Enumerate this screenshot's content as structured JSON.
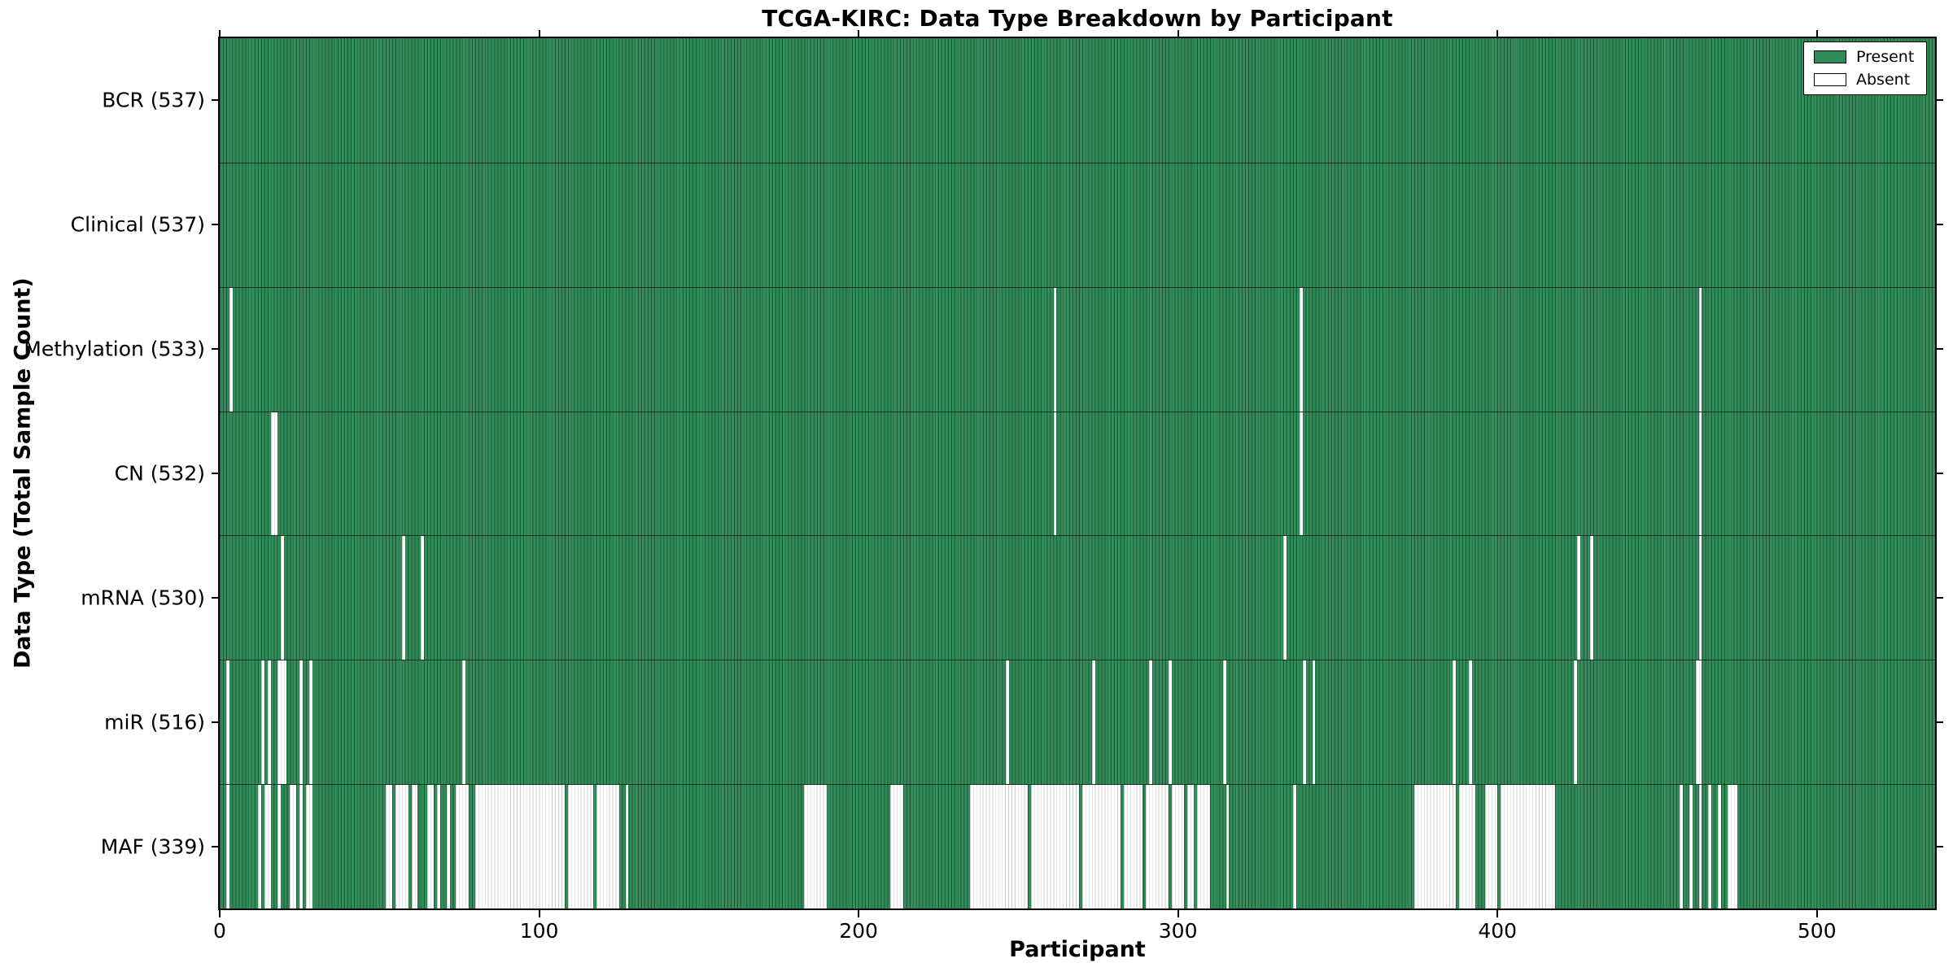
{
  "title": "TCGA-KIRC: Data Type Breakdown by Participant",
  "xlabel": "Participant",
  "ylabel": "Data Type (Total Sample Count)",
  "legend": {
    "present_label": "Present",
    "absent_label": "Absent"
  },
  "colors": {
    "present": "#2e8b57",
    "absent": "#ffffff",
    "edge": "#000000"
  },
  "x_ticks": [
    0,
    100,
    200,
    300,
    400,
    500
  ],
  "n_participants": 537,
  "chart_data": {
    "type": "heatmap",
    "title": "TCGA-KIRC: Data Type Breakdown by Participant",
    "xlabel": "Participant",
    "ylabel": "Data Type (Total Sample Count)",
    "xlim": [
      0,
      537
    ],
    "x_ticks": [
      0,
      100,
      200,
      300,
      400,
      500
    ],
    "legend_position": "upper right",
    "legend_entries": [
      "Present",
      "Absent"
    ],
    "grid": false,
    "rows": [
      {
        "name": "BCR",
        "label": "BCR (537)",
        "total": 537,
        "absent_ranges": []
      },
      {
        "name": "Clinical",
        "label": "Clinical (537)",
        "total": 537,
        "absent_ranges": []
      },
      {
        "name": "Methylation",
        "label": "Methylation (533)",
        "total": 533,
        "absent_ranges": [
          [
            3,
            3
          ],
          [
            261,
            261
          ],
          [
            338,
            338
          ],
          [
            463,
            463
          ]
        ]
      },
      {
        "name": "CN",
        "label": "CN (532)",
        "total": 532,
        "absent_ranges": [
          [
            16,
            17
          ],
          [
            261,
            261
          ],
          [
            338,
            338
          ],
          [
            463,
            463
          ]
        ]
      },
      {
        "name": "mRNA",
        "label": "mRNA (530)",
        "total": 530,
        "absent_ranges": [
          [
            19,
            19
          ],
          [
            57,
            57
          ],
          [
            63,
            63
          ],
          [
            333,
            333
          ],
          [
            425,
            425
          ],
          [
            429,
            429
          ],
          [
            463,
            463
          ]
        ]
      },
      {
        "name": "miR",
        "label": "miR (516)",
        "total": 516,
        "absent_ranges": [
          [
            2,
            2
          ],
          [
            13,
            13
          ],
          [
            15,
            15
          ],
          [
            18,
            20
          ],
          [
            25,
            25
          ],
          [
            28,
            28
          ],
          [
            76,
            76
          ],
          [
            246,
            246
          ],
          [
            273,
            273
          ],
          [
            291,
            291
          ],
          [
            297,
            297
          ],
          [
            314,
            314
          ],
          [
            339,
            339
          ],
          [
            342,
            342
          ],
          [
            386,
            386
          ],
          [
            391,
            391
          ],
          [
            424,
            424
          ],
          [
            462,
            463
          ]
        ]
      },
      {
        "name": "MAF",
        "label": "MAF (339)",
        "total": 339,
        "absent_ranges": [
          [
            2,
            2
          ],
          [
            12,
            12
          ],
          [
            14,
            15
          ],
          [
            18,
            18
          ],
          [
            22,
            23
          ],
          [
            25,
            25
          ],
          [
            27,
            28
          ],
          [
            52,
            53
          ],
          [
            55,
            58
          ],
          [
            60,
            61
          ],
          [
            65,
            66
          ],
          [
            68,
            68
          ],
          [
            71,
            71
          ],
          [
            74,
            77
          ],
          [
            80,
            107
          ],
          [
            109,
            116
          ],
          [
            118,
            124
          ],
          [
            127,
            127
          ],
          [
            183,
            189
          ],
          [
            210,
            213
          ],
          [
            235,
            252
          ],
          [
            254,
            268
          ],
          [
            270,
            281
          ],
          [
            283,
            288
          ],
          [
            290,
            296
          ],
          [
            298,
            301
          ],
          [
            303,
            304
          ],
          [
            306,
            309
          ],
          [
            315,
            315
          ],
          [
            336,
            336
          ],
          [
            374,
            386
          ],
          [
            388,
            392
          ],
          [
            396,
            399
          ],
          [
            401,
            417
          ],
          [
            457,
            457
          ],
          [
            460,
            460
          ],
          [
            463,
            463
          ],
          [
            466,
            466
          ],
          [
            469,
            469
          ],
          [
            472,
            474
          ]
        ]
      }
    ]
  }
}
